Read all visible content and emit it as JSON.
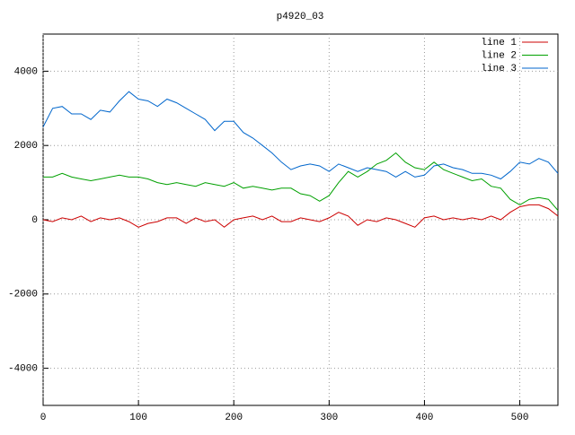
{
  "chart_data": {
    "type": "line",
    "title": "p4920_03",
    "x": [
      0,
      10,
      20,
      30,
      40,
      50,
      60,
      70,
      80,
      90,
      100,
      110,
      120,
      130,
      140,
      150,
      160,
      170,
      180,
      190,
      200,
      210,
      220,
      230,
      240,
      250,
      260,
      270,
      280,
      290,
      300,
      310,
      320,
      330,
      340,
      350,
      360,
      370,
      380,
      390,
      400,
      410,
      420,
      430,
      440,
      450,
      460,
      470,
      480,
      490,
      500,
      510,
      520,
      530,
      540
    ],
    "series": [
      {
        "name": "line 1",
        "color": "#cc0000",
        "values": [
          0,
          -50,
          50,
          0,
          100,
          -50,
          50,
          0,
          50,
          -50,
          -200,
          -100,
          -50,
          50,
          50,
          -100,
          50,
          -50,
          0,
          -200,
          0,
          50,
          100,
          0,
          100,
          -50,
          -50,
          50,
          0,
          -50,
          50,
          200,
          100,
          -150,
          0,
          -50,
          50,
          0,
          -100,
          -200,
          50,
          100,
          0,
          50,
          0,
          50,
          0,
          100,
          0,
          200,
          350,
          400,
          400,
          300,
          100
        ]
      },
      {
        "name": "line 2",
        "color": "#00a000",
        "values": [
          1150,
          1150,
          1250,
          1150,
          1100,
          1050,
          1100,
          1150,
          1200,
          1150,
          1150,
          1100,
          1000,
          950,
          1000,
          950,
          900,
          1000,
          950,
          900,
          1000,
          850,
          900,
          850,
          800,
          850,
          850,
          700,
          650,
          500,
          650,
          1000,
          1300,
          1150,
          1300,
          1500,
          1600,
          1800,
          1550,
          1400,
          1350,
          1550,
          1350,
          1250,
          1150,
          1050,
          1100,
          900,
          850,
          550,
          400,
          550,
          600,
          550,
          250
        ]
      },
      {
        "name": "line 3",
        "color": "#0066cc",
        "values": [
          2500,
          3000,
          3050,
          2850,
          2850,
          2700,
          2950,
          2900,
          3200,
          3450,
          3250,
          3200,
          3050,
          3250,
          3150,
          3000,
          2850,
          2700,
          2400,
          2650,
          2650,
          2350,
          2200,
          2000,
          1800,
          1550,
          1350,
          1450,
          1500,
          1450,
          1300,
          1500,
          1400,
          1300,
          1400,
          1350,
          1300,
          1150,
          1300,
          1150,
          1200,
          1450,
          1500,
          1400,
          1350,
          1250,
          1250,
          1200,
          1100,
          1300,
          1550,
          1500,
          1650,
          1550,
          1250
        ]
      }
    ],
    "xlim": [
      0,
      540
    ],
    "ylim": [
      -5000,
      5000
    ],
    "xticks": [
      0,
      100,
      200,
      300,
      400,
      500
    ],
    "yticks": [
      -4000,
      -2000,
      0,
      2000,
      4000
    ],
    "grid": true
  }
}
